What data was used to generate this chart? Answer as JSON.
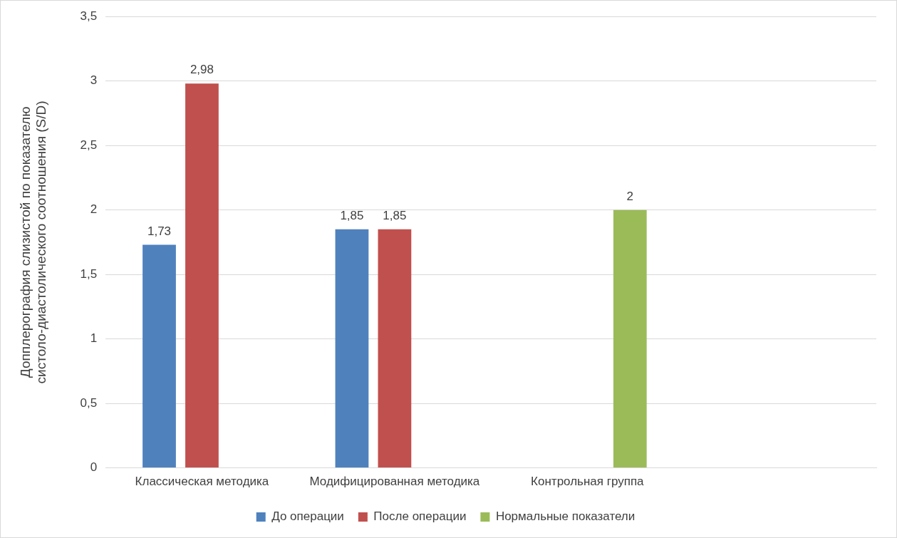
{
  "chart_data": {
    "type": "bar",
    "ylabel": "Допплерография слизистой по показателю\nсистоло-диастолического соотношения (S/D)",
    "categories": [
      "Классическая методика",
      "Модифицированная методика",
      "Контрольная группа",
      null
    ],
    "series": [
      {
        "name": "До операции",
        "color": "#4f81bd",
        "values": [
          1.73,
          1.85,
          null,
          null
        ],
        "value_labels": [
          "1,73",
          "1,85",
          null,
          null
        ]
      },
      {
        "name": "После операции",
        "color": "#c0504d",
        "values": [
          2.98,
          1.85,
          null,
          null
        ],
        "value_labels": [
          "2,98",
          "1,85",
          null,
          null
        ]
      },
      {
        "name": "Нормальные показатели",
        "color": "#9bbb59",
        "values": [
          null,
          null,
          2,
          null
        ],
        "value_labels": [
          null,
          null,
          "2",
          null
        ]
      }
    ],
    "ylim": [
      0,
      3.5
    ],
    "yticks": [
      0,
      {
        "value": 0.5,
        "label": "0,5"
      },
      1,
      {
        "value": 1.5,
        "label": "1,5"
      },
      2,
      {
        "value": 2.5,
        "label": "2,5"
      },
      3,
      {
        "value": 3.5,
        "label": "3,5"
      }
    ],
    "grid": "y",
    "legend": "bottom"
  }
}
